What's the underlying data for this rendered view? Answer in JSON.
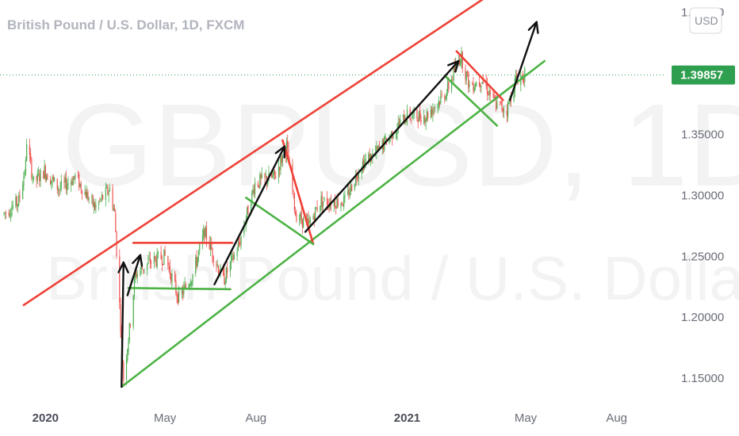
{
  "header": {
    "title": "British Pound / U.S. Dollar, 1D, FXCM"
  },
  "watermark": {
    "symbol": "GBPUSD, 1D",
    "name": "British Pound / U.S. Dollar"
  },
  "currency_button": "USD",
  "last_price": {
    "label": "1.39857",
    "value": 1.39857,
    "color": "#2e9e4f"
  },
  "colors": {
    "bull": "#4caf50",
    "bear": "#ef5350",
    "resistance": "#ef4136",
    "support": "#4cb344",
    "arrow": "#111111"
  },
  "chart_data": {
    "type": "candlestick",
    "title": "British Pound / U.S. Dollar, 1D, FXCM",
    "y_ticks": [
      "1.45000",
      "1.35000",
      "1.30000",
      "1.25000",
      "1.20000",
      "1.15000"
    ],
    "x_ticks": [
      "2020",
      "May",
      "Aug",
      "2021",
      "May",
      "Aug"
    ],
    "ylim": [
      1.13,
      1.46
    ],
    "xlim": [
      "2019-11-16",
      "2021-09-20"
    ],
    "price_path": [
      [
        "2019-11-20",
        1.285
      ],
      [
        "2019-12-05",
        1.295
      ],
      [
        "2019-12-12",
        1.325
      ],
      [
        "2019-12-13",
        1.345
      ],
      [
        "2019-12-20",
        1.31
      ],
      [
        "2019-12-31",
        1.32
      ],
      [
        "2020-01-15",
        1.305
      ],
      [
        "2020-01-31",
        1.315
      ],
      [
        "2020-02-20",
        1.29
      ],
      [
        "2020-03-06",
        1.305
      ],
      [
        "2020-03-11",
        1.285
      ],
      [
        "2020-03-20",
        1.15
      ],
      [
        "2020-03-26",
        1.19
      ],
      [
        "2020-04-01",
        1.235
      ],
      [
        "2020-04-15",
        1.245
      ],
      [
        "2020-05-01",
        1.25
      ],
      [
        "2020-05-15",
        1.215
      ],
      [
        "2020-05-29",
        1.235
      ],
      [
        "2020-06-10",
        1.27
      ],
      [
        "2020-06-29",
        1.23
      ],
      [
        "2020-07-15",
        1.26
      ],
      [
        "2020-07-31",
        1.31
      ],
      [
        "2020-08-20",
        1.315
      ],
      [
        "2020-09-01",
        1.34
      ],
      [
        "2020-09-10",
        1.285
      ],
      [
        "2020-09-23",
        1.275
      ],
      [
        "2020-10-05",
        1.295
      ],
      [
        "2020-10-30",
        1.295
      ],
      [
        "2020-11-15",
        1.325
      ],
      [
        "2020-12-01",
        1.335
      ],
      [
        "2020-12-31",
        1.365
      ],
      [
        "2021-01-20",
        1.365
      ],
      [
        "2021-02-10",
        1.385
      ],
      [
        "2021-02-24",
        1.415
      ],
      [
        "2021-03-05",
        1.39
      ],
      [
        "2021-03-18",
        1.395
      ],
      [
        "2021-03-31",
        1.375
      ],
      [
        "2021-04-12",
        1.37
      ],
      [
        "2021-04-21",
        1.395
      ],
      [
        "2021-04-30",
        1.39857
      ]
    ],
    "annotations": {
      "resistance_line": [
        [
          "2019-12-10",
          1.21
        ],
        [
          "2021-04-05",
          1.47
        ]
      ],
      "support_line": [
        [
          "2020-03-18",
          1.143
        ],
        [
          "2021-05-20",
          1.41
        ]
      ],
      "range_top": [
        [
          "2020-03-30",
          1.261
        ],
        [
          "2020-07-08",
          1.261
        ]
      ],
      "range_bottom": [
        [
          "2020-03-25",
          1.224
        ],
        [
          "2020-07-06",
          1.223
        ]
      ],
      "red_drops": [
        [
          [
            "2020-08-28",
            1.345
          ],
          [
            "2020-09-28",
            1.26
          ]
        ],
        [
          [
            "2021-02-20",
            1.418
          ],
          [
            "2021-04-08",
            1.378
          ]
        ]
      ],
      "green_flags": [
        [
          [
            "2020-07-22",
            1.298
          ],
          [
            "2020-09-28",
            1.26
          ]
        ],
        [
          [
            "2021-02-08",
            1.398
          ],
          [
            "2021-04-02",
            1.357
          ]
        ]
      ],
      "arrows": [
        [
          [
            "2020-03-18",
            1.143
          ],
          [
            "2020-03-20",
            1.245
          ]
        ],
        [
          [
            "2020-03-24",
            1.218
          ],
          [
            "2020-04-06",
            1.251
          ]
        ],
        [
          [
            "2020-06-20",
            1.227
          ],
          [
            "2020-08-30",
            1.34
          ]
        ],
        [
          [
            "2020-09-20",
            1.27
          ],
          [
            "2021-02-22",
            1.41
          ]
        ],
        [
          [
            "2021-04-15",
            1.378
          ],
          [
            "2021-05-12",
            1.442
          ]
        ]
      ]
    }
  }
}
